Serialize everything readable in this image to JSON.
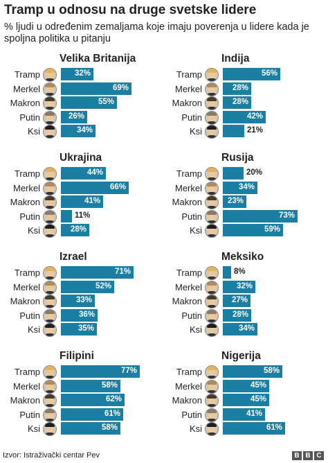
{
  "title": "Tramp u odnosu na druge svetske lidere",
  "subtitle": "% ljudi u određenim zemaljama koje imaju poverenja u lidere kada je spoljna politika u pitanju",
  "source": "Izvor: Istraživački centar Pev",
  "brand": [
    "B",
    "B",
    "C"
  ],
  "colors": {
    "bar": "#1b7ea3"
  },
  "avatar_icons": [
    "trump-face-icon",
    "merkel-face-icon",
    "macron-face-icon",
    "putin-face-icon",
    "xi-face-icon"
  ],
  "chart_data": [
    {
      "type": "bar",
      "title": "Velika Britanija",
      "categories": [
        "Tramp",
        "Merkel",
        "Makron",
        "Putin",
        "Ksi"
      ],
      "values": [
        32,
        69,
        55,
        26,
        34
      ],
      "labels": [
        "32%",
        "69%",
        "55%",
        "26%",
        "34%"
      ],
      "xlim": [
        0,
        100
      ]
    },
    {
      "type": "bar",
      "title": "Indija",
      "categories": [
        "Tramp",
        "Merkel",
        "Makron",
        "Putin",
        "Ksi"
      ],
      "values": [
        56,
        28,
        28,
        42,
        21
      ],
      "labels": [
        "56%",
        "28%",
        "28%",
        "42%",
        "21%"
      ],
      "xlim": [
        0,
        100
      ]
    },
    {
      "type": "bar",
      "title": "Ukrajina",
      "categories": [
        "Tramp",
        "Merkel",
        "Makron",
        "Putin",
        "Ksi"
      ],
      "values": [
        44,
        66,
        41,
        11,
        28
      ],
      "labels": [
        "44%",
        "66%",
        "41%",
        "11%",
        "28%"
      ],
      "xlim": [
        0,
        100
      ]
    },
    {
      "type": "bar",
      "title": "Rusija",
      "categories": [
        "Tramp",
        "Merkel",
        "Makron",
        "Putin",
        "Ksi"
      ],
      "values": [
        20,
        34,
        23,
        73,
        59
      ],
      "labels": [
        "20%",
        "34%",
        "23%",
        "73%",
        "59%"
      ],
      "xlim": [
        0,
        100
      ]
    },
    {
      "type": "bar",
      "title": "Izrael",
      "categories": [
        "Tramp",
        "Merkel",
        "Makron",
        "Putin",
        "Ksi"
      ],
      "values": [
        71,
        52,
        33,
        36,
        35
      ],
      "labels": [
        "71%",
        "52%",
        "33%",
        "36%",
        "35%"
      ],
      "xlim": [
        0,
        100
      ]
    },
    {
      "type": "bar",
      "title": "Meksiko",
      "categories": [
        "Tramp",
        "Merkel",
        "Makron",
        "Putin",
        "Ksi"
      ],
      "values": [
        8,
        32,
        27,
        28,
        34
      ],
      "labels": [
        "8%",
        "32%",
        "27%",
        "28%",
        "34%"
      ],
      "xlim": [
        0,
        100
      ]
    },
    {
      "type": "bar",
      "title": "Filipini",
      "categories": [
        "Tramp",
        "Merkel",
        "Makron",
        "Putin",
        "Ksi"
      ],
      "values": [
        77,
        58,
        62,
        61,
        58
      ],
      "labels": [
        "77%",
        "58%",
        "62%",
        "61%",
        "58%"
      ],
      "xlim": [
        0,
        100
      ]
    },
    {
      "type": "bar",
      "title": "Nigerija",
      "categories": [
        "Tramp",
        "Merkel",
        "Makron",
        "Putin",
        "Ksi"
      ],
      "values": [
        58,
        45,
        45,
        41,
        61
      ],
      "labels": [
        "58%",
        "45%",
        "45%",
        "41%",
        "61%"
      ],
      "xlim": [
        0,
        100
      ]
    }
  ]
}
